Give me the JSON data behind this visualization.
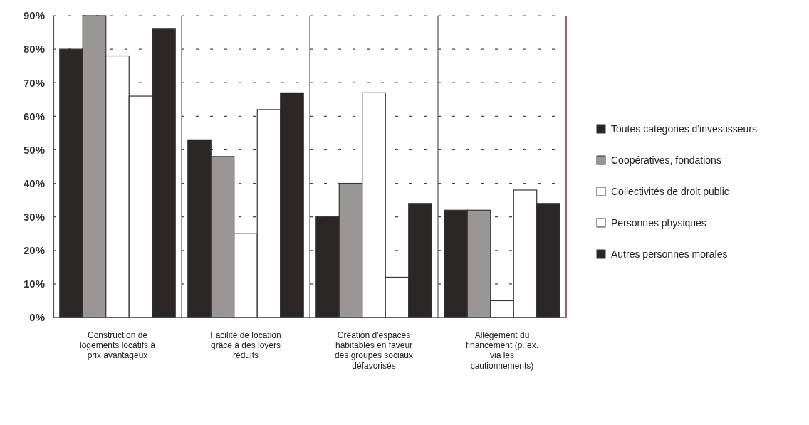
{
  "chart_data": {
    "type": "bar",
    "categories": [
      "Construction de logements locatifs à prix avantageux",
      "Facilité de location grâce à des loyers réduits",
      "Création d'espaces habitables en faveur des groupes sociaux défavorisés",
      "Allègement du financement (p. ex. via les cautionnements)"
    ],
    "series": [
      {
        "name": "Toutes catégories d'investisseurs",
        "color": "#2b2727",
        "values": [
          80,
          53,
          30,
          32
        ]
      },
      {
        "name": "Coopératives, fondations",
        "color": "#9a9696",
        "values": [
          90,
          48,
          40,
          32
        ]
      },
      {
        "name": "Collectivités de droit public",
        "color": "#ffffff",
        "values": [
          78,
          25,
          67,
          5
        ]
      },
      {
        "name": "Personnes physiques",
        "color": "#ffffff",
        "values": [
          66,
          62,
          12,
          38
        ]
      },
      {
        "name": "Autres personnes morales",
        "color": "#2b2727",
        "values": [
          86,
          67,
          34,
          34
        ]
      }
    ],
    "ylim": [
      0,
      90
    ],
    "yticks": [
      {
        "value": 0,
        "label": "0%"
      },
      {
        "value": 10,
        "label": "10%"
      },
      {
        "value": 20,
        "label": "20%"
      },
      {
        "value": 30,
        "label": "30%"
      },
      {
        "value": 40,
        "label": "40%"
      },
      {
        "value": 50,
        "label": "50%"
      },
      {
        "value": 60,
        "label": "60%"
      },
      {
        "value": 70,
        "label": "70%"
      },
      {
        "value": 80,
        "label": "80%"
      },
      {
        "value": 90,
        "label": "90%"
      }
    ],
    "grid": "y",
    "legend": "right"
  }
}
